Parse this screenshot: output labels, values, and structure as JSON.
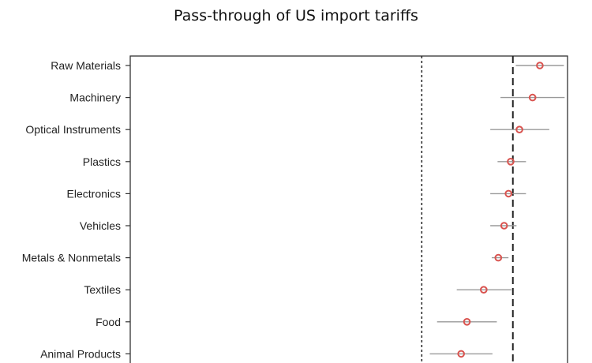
{
  "chart_data": {
    "type": "scatter",
    "title": "Pass-through of US import tariffs",
    "xlabel": "",
    "ylabel": "",
    "grid": false,
    "xlim": [
      -1.05,
      0.15
    ],
    "reference_lines": [
      {
        "x": -0.25,
        "style": "dotted"
      },
      {
        "x": 0.0,
        "style": "dashed"
      }
    ],
    "categories": [
      "Raw Materials",
      "Machinery",
      "Optical Instruments",
      "Plastics",
      "Electronics",
      "Vehicles",
      "Metals & Nonmetals",
      "Textiles",
      "Food",
      "Animal Products"
    ],
    "series": [
      {
        "estimates": [
          0.074,
          0.054,
          0.018,
          -0.006,
          -0.012,
          -0.024,
          -0.04,
          -0.08,
          -0.126,
          -0.142
        ],
        "ci_low": [
          0.008,
          -0.034,
          -0.062,
          -0.042,
          -0.062,
          -0.062,
          -0.058,
          -0.154,
          -0.208,
          -0.228
        ],
        "ci_high": [
          0.14,
          0.142,
          0.1,
          0.036,
          0.036,
          0.01,
          -0.012,
          -0.004,
          -0.044,
          -0.056
        ]
      }
    ],
    "colors": {
      "marker": "#d9534f",
      "interval": "#9a9a9a",
      "reference": "#222222",
      "frame": "#333333"
    }
  }
}
